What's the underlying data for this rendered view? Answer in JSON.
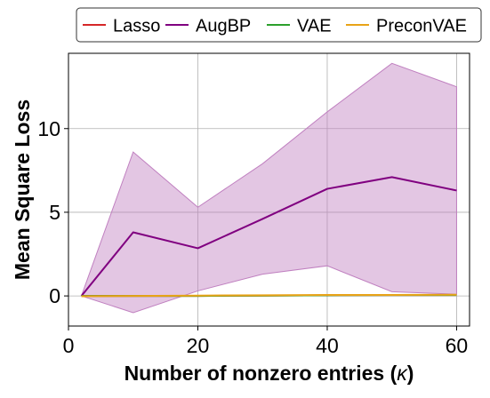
{
  "chart_data": {
    "type": "line",
    "title": "",
    "xlabel": "Number of nonzero entries (",
    "xlabel_symbol": "κ",
    "xlabel_suffix": ")",
    "ylabel": "Mean Square Loss",
    "xlim": [
      0,
      62
    ],
    "ylim": [
      -1.8,
      14.5
    ],
    "x_ticks": [
      0,
      20,
      40,
      60
    ],
    "y_ticks": [
      0,
      5,
      10
    ],
    "grid": true,
    "legend_position": "top, outside plot",
    "x": [
      2,
      10,
      20,
      30,
      40,
      50,
      60
    ],
    "series": [
      {
        "name": "Lasso",
        "color": "#d62728",
        "values": [
          0.0,
          0.0,
          0.0,
          0.02,
          0.04,
          0.05,
          0.05
        ]
      },
      {
        "name": "AugBP",
        "color": "#800080",
        "values": [
          0.0,
          3.8,
          2.85,
          4.6,
          6.4,
          7.1,
          6.3
        ],
        "band_lower": [
          0.0,
          -1.0,
          0.3,
          1.3,
          1.8,
          0.25,
          0.1
        ],
        "band_upper": [
          0.0,
          8.6,
          5.3,
          7.9,
          11.0,
          13.9,
          12.5
        ],
        "band_color": "#c080c0"
      },
      {
        "name": "VAE",
        "color": "#2ca02c",
        "values": [
          0.0,
          0.0,
          0.0,
          0.02,
          0.04,
          0.05,
          0.05
        ]
      },
      {
        "name": "PreconVAE",
        "color": "#e8a317",
        "values": [
          -0.02,
          0.0,
          0.02,
          0.04,
          0.06,
          0.06,
          0.07
        ]
      }
    ]
  }
}
